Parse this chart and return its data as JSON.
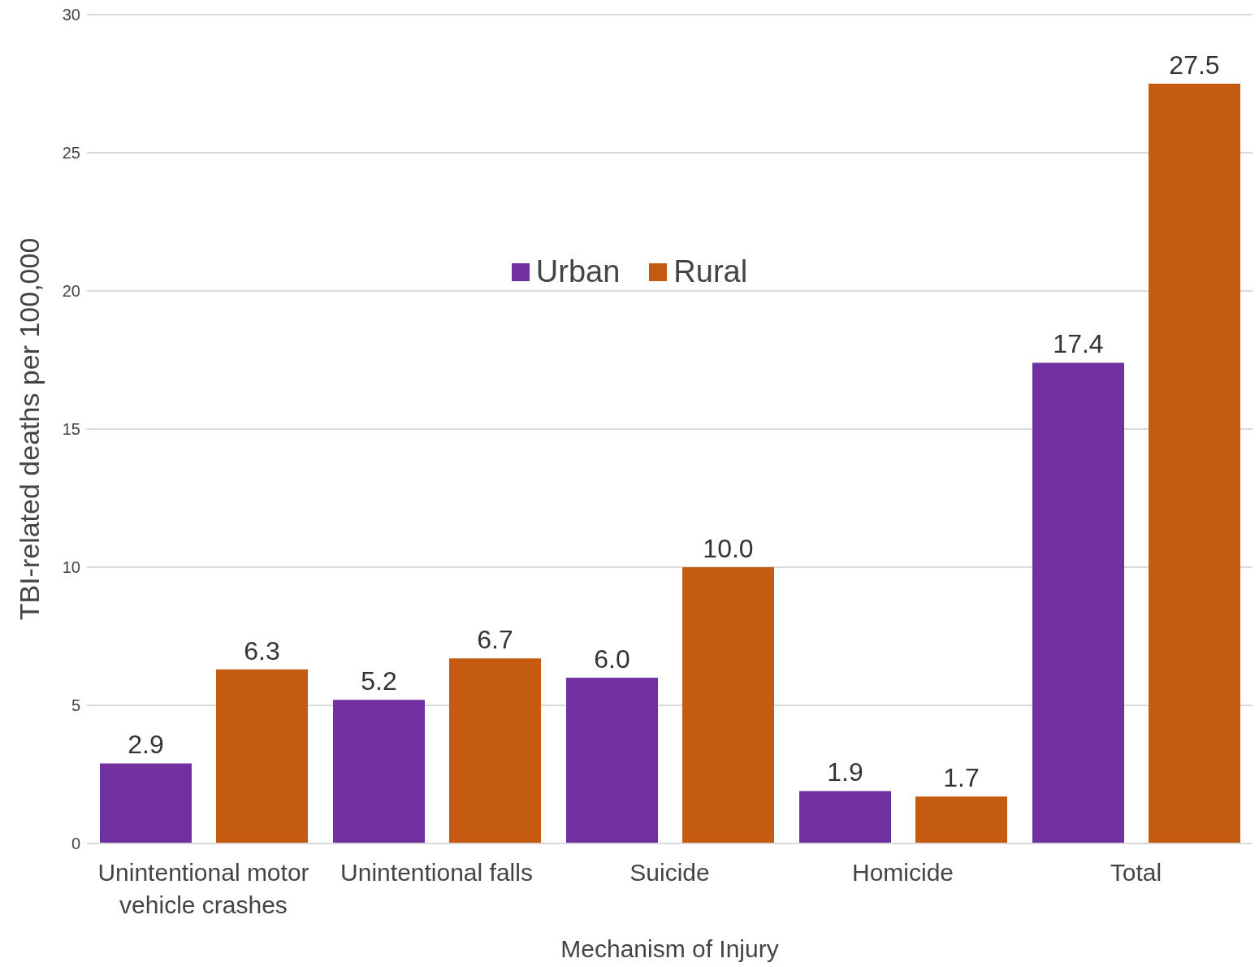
{
  "chart_data": {
    "type": "bar",
    "xlabel": "Mechanism of Injury",
    "ylabel": "TBI-related deaths per 100,000",
    "categories": [
      "Unintentional motor vehicle crashes",
      "Unintentional falls",
      "Suicide",
      "Homicide",
      "Total"
    ],
    "series": [
      {
        "name": "Urban",
        "color": "#7030a0",
        "values": [
          2.9,
          5.2,
          6.0,
          1.9,
          17.4
        ],
        "value_labels": [
          "2.9",
          "5.2",
          "6.0",
          "1.9",
          "17.4"
        ]
      },
      {
        "name": "Rural",
        "color": "#c55a11",
        "values": [
          6.3,
          6.7,
          10.0,
          1.7,
          27.5
        ],
        "value_labels": [
          "6.3",
          "6.7",
          "10.0",
          "1.7",
          "27.5"
        ]
      }
    ],
    "ylim": [
      0,
      30
    ],
    "yticks": [
      0,
      5,
      10,
      15,
      20,
      25,
      30
    ],
    "grid": "y",
    "legend": "top"
  }
}
